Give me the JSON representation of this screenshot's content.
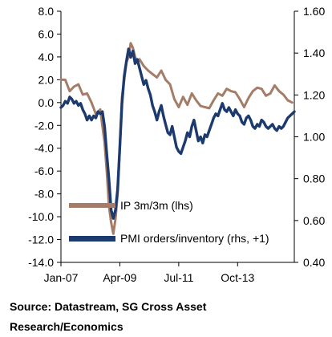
{
  "chart_data": {
    "type": "line",
    "y_left": {
      "ticks": [
        "8.0",
        "6.0",
        "4.0",
        "2.0",
        "0.0",
        "-2.0",
        "-4.0",
        "-6.0",
        "-8.0",
        "-10.0",
        "-12.0",
        "-14.0"
      ],
      "range": [
        -14,
        8
      ]
    },
    "y_right": {
      "ticks": [
        "1.60",
        "1.40",
        "1.20",
        "1.00",
        "0.80",
        "0.60",
        "0.40"
      ],
      "range": [
        0.4,
        1.6
      ]
    },
    "x_ticks": [
      "Jan-07",
      "Apr-09",
      "Jul-11",
      "Oct-13"
    ],
    "x_range": [
      "2007-01",
      "2015-12"
    ],
    "grid": false,
    "legend_position": "bottom-right",
    "series": [
      {
        "name": "IP 3m/3m (lhs)",
        "axis": "left",
        "color": "#a47c67",
        "points": [
          [
            "2007-01",
            2.0
          ],
          [
            "2007-03",
            2.0
          ],
          [
            "2007-05",
            1.0
          ],
          [
            "2007-07",
            1.4
          ],
          [
            "2007-09",
            1.6
          ],
          [
            "2007-11",
            0.7
          ],
          [
            "2008-01",
            0.8
          ],
          [
            "2008-03",
            0.0
          ],
          [
            "2008-05",
            -1.0
          ],
          [
            "2008-07",
            -0.6
          ],
          [
            "2008-09",
            -3.5
          ],
          [
            "2008-10",
            -6.0
          ],
          [
            "2008-11",
            -9.0
          ],
          [
            "2008-12",
            -10.5
          ],
          [
            "2009-01",
            -11.5
          ],
          [
            "2009-02",
            -10.2
          ],
          [
            "2009-03",
            -8.0
          ],
          [
            "2009-04",
            -4.0
          ],
          [
            "2009-05",
            0.5
          ],
          [
            "2009-06",
            2.0
          ],
          [
            "2009-07",
            3.5
          ],
          [
            "2009-08",
            4.0
          ],
          [
            "2009-09",
            5.2
          ],
          [
            "2009-10",
            4.8
          ],
          [
            "2009-11",
            4.0
          ],
          [
            "2009-12",
            3.5
          ],
          [
            "2010-01",
            3.8
          ],
          [
            "2010-03",
            3.2
          ],
          [
            "2010-05",
            2.8
          ],
          [
            "2010-07",
            2.5
          ],
          [
            "2010-09",
            2.2
          ],
          [
            "2010-11",
            2.8
          ],
          [
            "2011-01",
            2.0
          ],
          [
            "2011-03",
            1.6
          ],
          [
            "2011-05",
            0.3
          ],
          [
            "2011-07",
            -0.4
          ],
          [
            "2011-09",
            0.5
          ],
          [
            "2011-11",
            -0.2
          ],
          [
            "2012-01",
            0.8
          ],
          [
            "2012-03",
            0.2
          ],
          [
            "2012-05",
            -0.3
          ],
          [
            "2012-07",
            -0.4
          ],
          [
            "2012-09",
            -0.5
          ],
          [
            "2012-11",
            0.2
          ],
          [
            "2013-01",
            0.8
          ],
          [
            "2013-03",
            0.6
          ],
          [
            "2013-05",
            1.2
          ],
          [
            "2013-07",
            1.0
          ],
          [
            "2013-09",
            0.9
          ],
          [
            "2013-11",
            0.3
          ],
          [
            "2014-01",
            -0.4
          ],
          [
            "2014-03",
            0.4
          ],
          [
            "2014-05",
            1.0
          ],
          [
            "2014-07",
            1.3
          ],
          [
            "2014-09",
            1.2
          ],
          [
            "2014-11",
            0.6
          ],
          [
            "2015-01",
            0.8
          ],
          [
            "2015-03",
            1.5
          ],
          [
            "2015-05",
            1.0
          ],
          [
            "2015-07",
            0.7
          ],
          [
            "2015-09",
            0.2
          ],
          [
            "2015-11",
            0.0
          ]
        ]
      },
      {
        "name": "PMI orders/inventory (rhs, +1)",
        "axis": "right",
        "color": "#1c3a6e",
        "points": [
          [
            "2007-01",
            1.14
          ],
          [
            "2007-02",
            1.15
          ],
          [
            "2007-03",
            1.17
          ],
          [
            "2007-04",
            1.16
          ],
          [
            "2007-05",
            1.19
          ],
          [
            "2007-06",
            1.18
          ],
          [
            "2007-07",
            1.16
          ],
          [
            "2007-08",
            1.17
          ],
          [
            "2007-09",
            1.15
          ],
          [
            "2007-10",
            1.16
          ],
          [
            "2007-11",
            1.13
          ],
          [
            "2007-12",
            1.11
          ],
          [
            "2008-01",
            1.08
          ],
          [
            "2008-02",
            1.1
          ],
          [
            "2008-03",
            1.08
          ],
          [
            "2008-04",
            1.1
          ],
          [
            "2008-05",
            1.09
          ],
          [
            "2008-06",
            1.12
          ],
          [
            "2008-07",
            1.11
          ],
          [
            "2008-08",
            1.12
          ],
          [
            "2008-09",
            1.05
          ],
          [
            "2008-10",
            0.92
          ],
          [
            "2008-11",
            0.8
          ],
          [
            "2008-12",
            0.65
          ],
          [
            "2009-01",
            0.61
          ],
          [
            "2009-02",
            0.65
          ],
          [
            "2009-03",
            0.75
          ],
          [
            "2009-04",
            0.95
          ],
          [
            "2009-05",
            1.16
          ],
          [
            "2009-06",
            1.29
          ],
          [
            "2009-07",
            1.36
          ],
          [
            "2009-08",
            1.42
          ],
          [
            "2009-09",
            1.38
          ],
          [
            "2009-10",
            1.41
          ],
          [
            "2009-11",
            1.35
          ],
          [
            "2009-12",
            1.37
          ],
          [
            "2010-01",
            1.33
          ],
          [
            "2010-02",
            1.29
          ],
          [
            "2010-03",
            1.25
          ],
          [
            "2010-04",
            1.27
          ],
          [
            "2010-05",
            1.23
          ],
          [
            "2010-06",
            1.2
          ],
          [
            "2010-07",
            1.15
          ],
          [
            "2010-08",
            1.12
          ],
          [
            "2010-09",
            1.08
          ],
          [
            "2010-10",
            1.12
          ],
          [
            "2010-11",
            1.15
          ],
          [
            "2010-12",
            1.1
          ],
          [
            "2011-01",
            1.06
          ],
          [
            "2011-02",
            1.02
          ],
          [
            "2011-03",
            1.01
          ],
          [
            "2011-04",
            1.05
          ],
          [
            "2011-05",
            1.0
          ],
          [
            "2011-06",
            0.95
          ],
          [
            "2011-07",
            0.93
          ],
          [
            "2011-08",
            0.92
          ],
          [
            "2011-09",
            0.95
          ],
          [
            "2011-10",
            0.98
          ],
          [
            "2011-11",
            1.02
          ],
          [
            "2011-12",
            1.0
          ],
          [
            "2012-01",
            1.05
          ],
          [
            "2012-02",
            1.08
          ],
          [
            "2012-03",
            1.03
          ],
          [
            "2012-04",
            0.98
          ],
          [
            "2012-05",
            1.0
          ],
          [
            "2012-06",
            0.97
          ],
          [
            "2012-07",
            1.01
          ],
          [
            "2012-08",
            1.0
          ],
          [
            "2012-09",
            1.03
          ],
          [
            "2012-10",
            1.06
          ],
          [
            "2012-11",
            1.09
          ],
          [
            "2012-12",
            1.11
          ],
          [
            "2013-01",
            1.1
          ],
          [
            "2013-02",
            1.13
          ],
          [
            "2013-03",
            1.16
          ],
          [
            "2013-04",
            1.13
          ],
          [
            "2013-05",
            1.12
          ],
          [
            "2013-06",
            1.14
          ],
          [
            "2013-07",
            1.12
          ],
          [
            "2013-08",
            1.1
          ],
          [
            "2013-09",
            1.13
          ],
          [
            "2013-10",
            1.11
          ],
          [
            "2013-11",
            1.1
          ],
          [
            "2013-12",
            1.07
          ],
          [
            "2014-01",
            1.06
          ],
          [
            "2014-02",
            1.09
          ],
          [
            "2014-03",
            1.1
          ],
          [
            "2014-04",
            1.08
          ],
          [
            "2014-05",
            1.05
          ],
          [
            "2014-06",
            1.04
          ],
          [
            "2014-07",
            1.06
          ],
          [
            "2014-08",
            1.05
          ],
          [
            "2014-09",
            1.08
          ],
          [
            "2014-10",
            1.07
          ],
          [
            "2014-11",
            1.05
          ],
          [
            "2014-12",
            1.04
          ],
          [
            "2015-01",
            1.05
          ],
          [
            "2015-02",
            1.06
          ],
          [
            "2015-03",
            1.04
          ],
          [
            "2015-04",
            1.03
          ],
          [
            "2015-05",
            1.05
          ],
          [
            "2015-06",
            1.04
          ],
          [
            "2015-07",
            1.05
          ],
          [
            "2015-08",
            1.07
          ],
          [
            "2015-09",
            1.09
          ],
          [
            "2015-10",
            1.1
          ],
          [
            "2015-11",
            1.11
          ],
          [
            "2015-12",
            1.12
          ]
        ]
      }
    ]
  },
  "source": {
    "line1": "Source: Datastream, SG Cross Asset",
    "line2": "Research/Economics"
  }
}
